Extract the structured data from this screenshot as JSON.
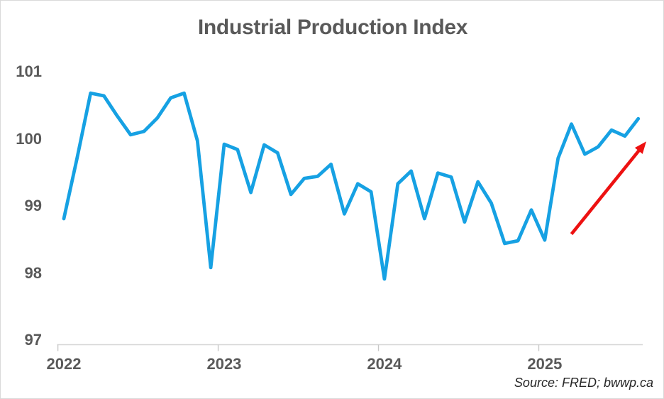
{
  "title": "Industrial Production Index",
  "source_note": "Source: FRED; bwwp.ca",
  "colors": {
    "line": "#16A1E3",
    "arrow": "#ED1111",
    "axis": "#D6D6D6",
    "tick": "#C8C8C8",
    "label_text": "#595959",
    "title_text": "#595959",
    "source_text": "#262626",
    "background": "#FFFFFF",
    "border": "#D9D9D9"
  },
  "chart_data": {
    "type": "line",
    "title": "Industrial Production Index",
    "xlabel": "",
    "ylabel": "",
    "x_frequency": "monthly",
    "x": [
      "2022-01",
      "2022-02",
      "2022-03",
      "2022-04",
      "2022-05",
      "2022-06",
      "2022-07",
      "2022-08",
      "2022-09",
      "2022-10",
      "2022-11",
      "2022-12",
      "2023-01",
      "2023-02",
      "2023-03",
      "2023-04",
      "2023-05",
      "2023-06",
      "2023-07",
      "2023-08",
      "2023-09",
      "2023-10",
      "2023-11",
      "2023-12",
      "2024-01",
      "2024-02",
      "2024-03",
      "2024-04",
      "2024-05",
      "2024-06",
      "2024-07",
      "2024-08",
      "2024-09",
      "2024-10",
      "2024-11",
      "2024-12",
      "2025-01",
      "2025-02",
      "2025-03",
      "2025-04",
      "2025-05",
      "2025-06",
      "2025-07",
      "2025-08"
    ],
    "values": [
      98.81,
      99.72,
      100.68,
      100.64,
      100.34,
      100.06,
      100.11,
      100.31,
      100.61,
      100.68,
      99.97,
      98.08,
      99.92,
      99.84,
      99.2,
      99.91,
      99.79,
      99.17,
      99.41,
      99.44,
      99.62,
      98.88,
      99.33,
      99.21,
      97.91,
      99.33,
      99.52,
      98.81,
      99.49,
      99.43,
      98.76,
      99.36,
      99.04,
      98.44,
      98.48,
      98.94,
      98.49,
      99.71,
      100.22,
      99.77,
      99.88,
      100.13,
      100.04,
      100.3
    ],
    "y_ticks": [
      101,
      100,
      99,
      98,
      97
    ],
    "x_tick_labels": [
      "2022",
      "2023",
      "2024",
      "2025"
    ],
    "ylim": [
      97,
      101
    ],
    "grid": false,
    "legend": false,
    "annotation": {
      "type": "arrow",
      "description": "red arrow highlighting recent uptrend",
      "from_month_index": 38,
      "from_value": 98.58,
      "to_month_index": 43.6,
      "to_value": 99.96
    }
  }
}
